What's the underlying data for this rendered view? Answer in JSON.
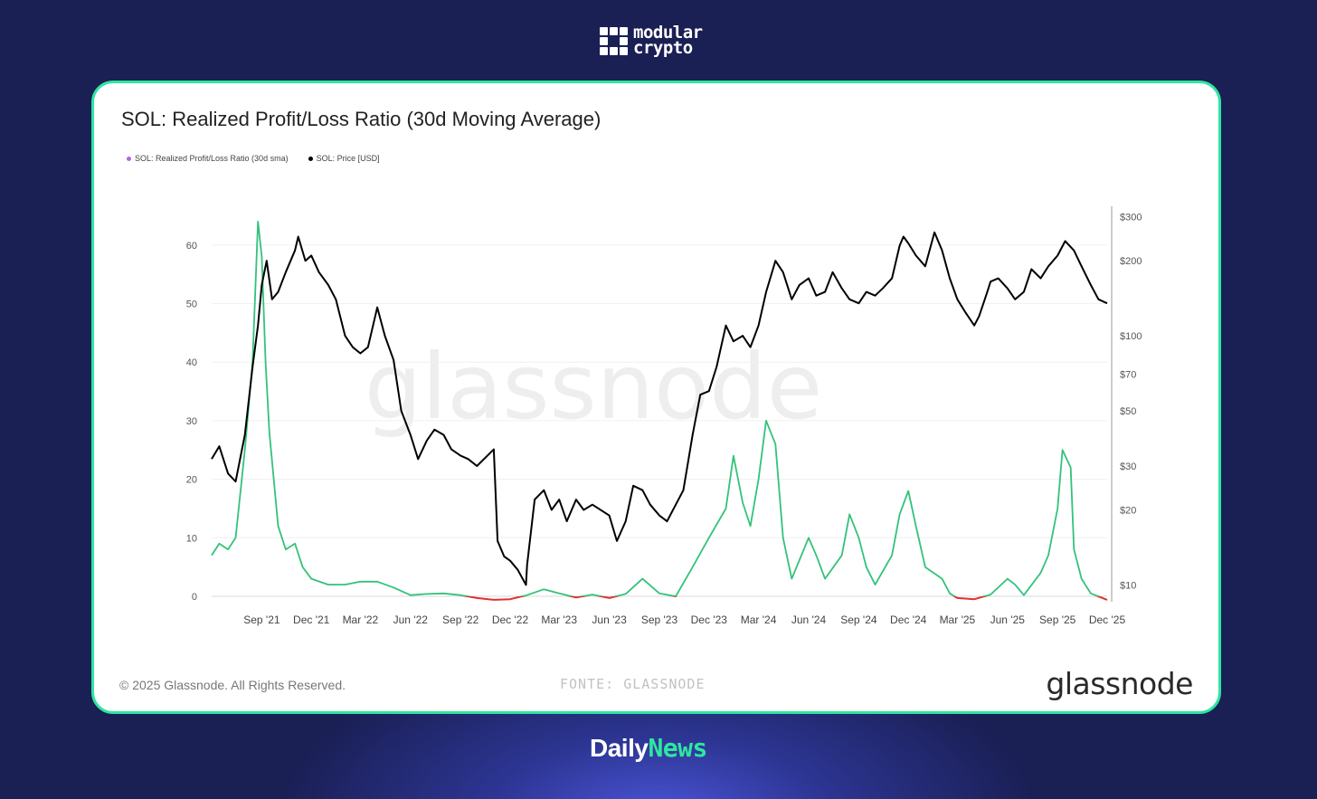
{
  "brand": {
    "name_line1": "modular",
    "name_line2": "crypto",
    "icon": "modular-crypto-grid-logo"
  },
  "footer_brand": {
    "part1": "Daily",
    "part2": "News"
  },
  "card": {
    "copyright": "© 2025 Glassnode. All Rights Reserved.",
    "source": "FONTE: GLASSNODE",
    "wordmark": "glassnode",
    "watermark": "glassnode"
  },
  "colors": {
    "accent": "#2ee6a0",
    "ratio_above_1": "#33c27a",
    "ratio_below_1": "#e03131",
    "price": "#000000",
    "legend_ratio": "#b565e0",
    "background": "#1a1f54"
  },
  "chart_data": {
    "type": "line",
    "title": "SOL: Realized Profit/Loss Ratio (30d Moving Average)",
    "legend": [
      {
        "label": "SOL: Realized Profit/Loss Ratio (30d sma)",
        "color": "#b565e0"
      },
      {
        "label": "SOL: Price [USD]",
        "color": "#000000"
      }
    ],
    "legend_position": "top-left",
    "grid": true,
    "x_ticks": [
      "Sep '21",
      "Dec '21",
      "Mar '22",
      "Jun '22",
      "Sep '22",
      "Dec '22",
      "Mar '23",
      "Jun '23",
      "Sep '23",
      "Dec '23",
      "Mar '24",
      "Jun '24",
      "Sep '24",
      "Dec '24",
      "Mar '25",
      "Jun '25",
      "Sep '25",
      "Dec '25"
    ],
    "x_range": [
      "2021-06",
      "2025-12"
    ],
    "y_left": {
      "ticks": [
        0,
        10,
        20,
        30,
        40,
        50,
        60
      ],
      "range": [
        0,
        66
      ]
    },
    "y_right": {
      "scale": "log",
      "ticks": [
        10,
        20,
        30,
        50,
        70,
        100,
        200,
        300
      ],
      "tick_labels": [
        "$10",
        "$20",
        "$30",
        "$50",
        "$70",
        "$100",
        "$200",
        "$300"
      ],
      "range": [
        9,
        320
      ]
    },
    "series": [
      {
        "name": "SOL: Realized Profit/Loss Ratio (30d sma)",
        "axis": "left",
        "points": [
          [
            "2021-06",
            7
          ],
          [
            "2021-06-15",
            9
          ],
          [
            "2021-07",
            8
          ],
          [
            "2021-07-15",
            10
          ],
          [
            "2021-08",
            25
          ],
          [
            "2021-08-15",
            40
          ],
          [
            "2021-08-25",
            64
          ],
          [
            "2021-09",
            58
          ],
          [
            "2021-09-08",
            40
          ],
          [
            "2021-09-15",
            28
          ],
          [
            "2021-10",
            12
          ],
          [
            "2021-10-15",
            8
          ],
          [
            "2021-11",
            9
          ],
          [
            "2021-11-15",
            5
          ],
          [
            "2021-12",
            3
          ],
          [
            "2022-01",
            2
          ],
          [
            "2022-02",
            2
          ],
          [
            "2022-03",
            2.5
          ],
          [
            "2022-04",
            2.5
          ],
          [
            "2022-05",
            1.5
          ],
          [
            "2022-06",
            0.2
          ],
          [
            "2022-07",
            0.4
          ],
          [
            "2022-08",
            0.5
          ],
          [
            "2022-09",
            0.2
          ],
          [
            "2022-10",
            -0.3
          ],
          [
            "2022-11",
            -0.6
          ],
          [
            "2022-12",
            -0.5
          ],
          [
            "2023-01",
            0.2
          ],
          [
            "2023-02",
            1.2
          ],
          [
            "2023-03",
            0.5
          ],
          [
            "2023-04",
            -0.2
          ],
          [
            "2023-05",
            0.3
          ],
          [
            "2023-06",
            -0.3
          ],
          [
            "2023-07",
            0.4
          ],
          [
            "2023-08",
            3
          ],
          [
            "2023-09",
            0.5
          ],
          [
            "2023-10",
            0
          ],
          [
            "2023-11",
            5
          ],
          [
            "2023-12",
            10
          ],
          [
            "2024-01",
            15
          ],
          [
            "2024-01-15",
            24
          ],
          [
            "2024-02",
            16
          ],
          [
            "2024-02-15",
            12
          ],
          [
            "2024-03",
            20
          ],
          [
            "2024-03-15",
            30
          ],
          [
            "2024-04",
            26
          ],
          [
            "2024-04-15",
            10
          ],
          [
            "2024-05",
            3
          ],
          [
            "2024-06",
            10
          ],
          [
            "2024-06-15",
            7
          ],
          [
            "2024-07",
            3
          ],
          [
            "2024-08",
            7
          ],
          [
            "2024-08-15",
            14
          ],
          [
            "2024-09",
            10
          ],
          [
            "2024-09-15",
            5
          ],
          [
            "2024-10",
            2
          ],
          [
            "2024-11",
            7
          ],
          [
            "2024-11-15",
            14
          ],
          [
            "2024-12",
            18
          ],
          [
            "2024-12-15",
            12
          ],
          [
            "2025-01",
            5
          ],
          [
            "2025-02",
            3
          ],
          [
            "2025-02-15",
            0.5
          ],
          [
            "2025-03",
            -0.3
          ],
          [
            "2025-04",
            -0.5
          ],
          [
            "2025-05",
            0.3
          ],
          [
            "2025-06",
            3
          ],
          [
            "2025-06-15",
            2
          ],
          [
            "2025-07",
            0.2
          ],
          [
            "2025-08",
            4
          ],
          [
            "2025-08-15",
            7
          ],
          [
            "2025-09",
            15
          ],
          [
            "2025-09-10",
            25
          ],
          [
            "2025-09-25",
            22
          ],
          [
            "2025-10",
            8
          ],
          [
            "2025-10-15",
            3
          ],
          [
            "2025-11",
            0.5
          ],
          [
            "2025-12",
            -0.6
          ]
        ]
      },
      {
        "name": "SOL: Price [USD]",
        "axis": "right",
        "points": [
          [
            "2021-06",
            32
          ],
          [
            "2021-06-15",
            36
          ],
          [
            "2021-07",
            28
          ],
          [
            "2021-07-15",
            26
          ],
          [
            "2021-08",
            40
          ],
          [
            "2021-08-15",
            75
          ],
          [
            "2021-08-25",
            110
          ],
          [
            "2021-09",
            160
          ],
          [
            "2021-09-10",
            200
          ],
          [
            "2021-09-20",
            140
          ],
          [
            "2021-10",
            150
          ],
          [
            "2021-10-15",
            180
          ],
          [
            "2021-11",
            220
          ],
          [
            "2021-11-07",
            250
          ],
          [
            "2021-11-20",
            200
          ],
          [
            "2021-12",
            210
          ],
          [
            "2021-12-15",
            180
          ],
          [
            "2022-01",
            160
          ],
          [
            "2022-01-15",
            140
          ],
          [
            "2022-02",
            100
          ],
          [
            "2022-02-15",
            90
          ],
          [
            "2022-03",
            85
          ],
          [
            "2022-03-15",
            90
          ],
          [
            "2022-04",
            130
          ],
          [
            "2022-04-15",
            100
          ],
          [
            "2022-05",
            80
          ],
          [
            "2022-05-15",
            50
          ],
          [
            "2022-06",
            40
          ],
          [
            "2022-06-15",
            32
          ],
          [
            "2022-07",
            38
          ],
          [
            "2022-07-15",
            42
          ],
          [
            "2022-08",
            40
          ],
          [
            "2022-08-15",
            35
          ],
          [
            "2022-09",
            33
          ],
          [
            "2022-09-15",
            32
          ],
          [
            "2022-10",
            30
          ],
          [
            "2022-11",
            35
          ],
          [
            "2022-11-08",
            15
          ],
          [
            "2022-11-20",
            13
          ],
          [
            "2022-12",
            12.5
          ],
          [
            "2022-12-15",
            11.5
          ],
          [
            "2022-12-30",
            10
          ],
          [
            "2023-01",
            12
          ],
          [
            "2023-01-15",
            22
          ],
          [
            "2023-02",
            24
          ],
          [
            "2023-02-15",
            20
          ],
          [
            "2023-03",
            22
          ],
          [
            "2023-03-15",
            18
          ],
          [
            "2023-04",
            22
          ],
          [
            "2023-04-15",
            20
          ],
          [
            "2023-05",
            21
          ],
          [
            "2023-06",
            19
          ],
          [
            "2023-06-15",
            15
          ],
          [
            "2023-07",
            18
          ],
          [
            "2023-07-15",
            25
          ],
          [
            "2023-08",
            24
          ],
          [
            "2023-08-15",
            21
          ],
          [
            "2023-09",
            19
          ],
          [
            "2023-09-15",
            18
          ],
          [
            "2023-10",
            21
          ],
          [
            "2023-10-15",
            24
          ],
          [
            "2023-11",
            40
          ],
          [
            "2023-11-15",
            58
          ],
          [
            "2023-12",
            60
          ],
          [
            "2023-12-15",
            75
          ],
          [
            "2024-01",
            110
          ],
          [
            "2024-01-15",
            95
          ],
          [
            "2024-02",
            100
          ],
          [
            "2024-02-15",
            90
          ],
          [
            "2024-03",
            110
          ],
          [
            "2024-03-15",
            150
          ],
          [
            "2024-04",
            200
          ],
          [
            "2024-04-15",
            180
          ],
          [
            "2024-05",
            140
          ],
          [
            "2024-05-15",
            160
          ],
          [
            "2024-06",
            170
          ],
          [
            "2024-06-15",
            145
          ],
          [
            "2024-07",
            150
          ],
          [
            "2024-07-15",
            180
          ],
          [
            "2024-08",
            155
          ],
          [
            "2024-08-15",
            140
          ],
          [
            "2024-09",
            135
          ],
          [
            "2024-09-15",
            150
          ],
          [
            "2024-10",
            145
          ],
          [
            "2024-10-15",
            155
          ],
          [
            "2024-11",
            170
          ],
          [
            "2024-11-15",
            230
          ],
          [
            "2024-11-22",
            250
          ],
          [
            "2024-12",
            235
          ],
          [
            "2024-12-15",
            210
          ],
          [
            "2025-01",
            190
          ],
          [
            "2025-01-18",
            260
          ],
          [
            "2025-02",
            220
          ],
          [
            "2025-02-15",
            170
          ],
          [
            "2025-03",
            140
          ],
          [
            "2025-03-15",
            125
          ],
          [
            "2025-04",
            110
          ],
          [
            "2025-04-10",
            120
          ],
          [
            "2025-04-25",
            150
          ],
          [
            "2025-05",
            165
          ],
          [
            "2025-05-15",
            170
          ],
          [
            "2025-06",
            155
          ],
          [
            "2025-06-15",
            140
          ],
          [
            "2025-07",
            150
          ],
          [
            "2025-07-15",
            185
          ],
          [
            "2025-08",
            170
          ],
          [
            "2025-08-15",
            190
          ],
          [
            "2025-09",
            210
          ],
          [
            "2025-09-15",
            240
          ],
          [
            "2025-10",
            220
          ],
          [
            "2025-10-15",
            190
          ],
          [
            "2025-11",
            160
          ],
          [
            "2025-11-15",
            140
          ],
          [
            "2025-12",
            135
          ]
        ]
      }
    ]
  }
}
